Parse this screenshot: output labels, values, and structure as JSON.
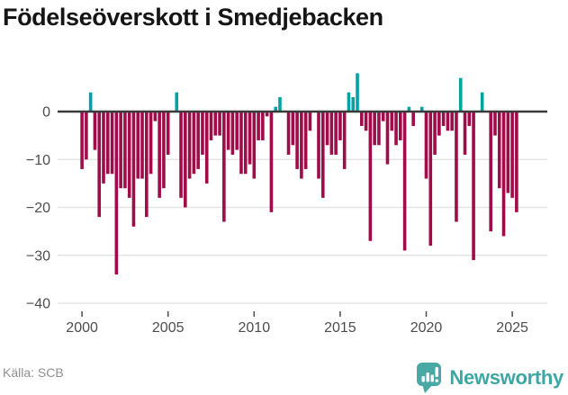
{
  "title": "Födelseöverskott i Smedjebacken",
  "source": {
    "label": "Källa: SCB"
  },
  "brand": {
    "name": "Newsworthy",
    "icon": "bar-chart-pin-icon",
    "color": "#3ea7a3"
  },
  "chart_data": {
    "type": "bar",
    "title": "Födelseöverskott i Smedjebacken",
    "xlabel": "",
    "ylabel": "",
    "frequency": "quarterly",
    "x_start": "2000-Q1",
    "x_end": "2025-Q2",
    "x_ticks": [
      2000,
      2005,
      2010,
      2015,
      2020,
      2025
    ],
    "y_ticks": [
      0,
      -10,
      -20,
      -30,
      -40
    ],
    "ylim": [
      -40,
      9
    ],
    "grid": true,
    "legend": false,
    "values": [
      -12,
      -10,
      4,
      -8,
      -22,
      -15,
      -13,
      -13,
      -34,
      -16,
      -16,
      -18,
      -24,
      -14,
      -14,
      -22,
      -13,
      -2,
      -18,
      -16,
      -9,
      0,
      4,
      -18,
      -20,
      -14,
      -13,
      -12,
      -9,
      -15,
      -6,
      -5,
      -5,
      -23,
      -8,
      -9,
      -8,
      -13,
      -13,
      -11,
      -14,
      -6,
      -6,
      -1,
      -21,
      1,
      3,
      0,
      -9,
      -7,
      -12,
      -14,
      -12,
      -4,
      0,
      -14,
      -18,
      -7,
      -9,
      -9,
      -6,
      -12,
      4,
      3,
      8,
      -3,
      -4,
      -27,
      -7,
      -7,
      -2,
      -11,
      -4,
      -7,
      -6,
      -29,
      1,
      -3,
      0,
      1,
      -14,
      -28,
      -9,
      -5,
      -3,
      -4,
      -4,
      -23,
      7,
      -9,
      -3,
      -31,
      0,
      4,
      0,
      -25,
      -5,
      -16,
      -26,
      -17,
      -18,
      -21
    ],
    "colors": {
      "positive": "#00a3a3",
      "negative": "#a00c49",
      "zero_line": "#3a3a3a",
      "grid": "#e4e4e4",
      "axis_text": "#4d4d4d"
    }
  }
}
